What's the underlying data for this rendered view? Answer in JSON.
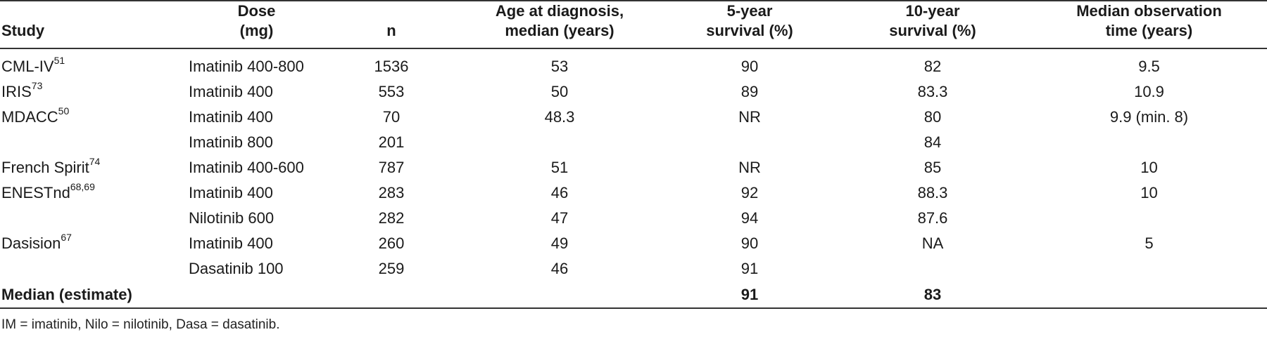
{
  "table": {
    "headers": {
      "study": "Study",
      "dose_line1": "Dose",
      "dose_line2": "(mg)",
      "n": "n",
      "age_line1": "Age at diagnosis,",
      "age_line2": "median (years)",
      "surv5_line1": "5-year",
      "surv5_line2": "survival (%)",
      "surv10_line1": "10-year",
      "surv10_line2": "survival (%)",
      "obs_line1": "Median observation",
      "obs_line2": "time (years)"
    },
    "rows": [
      {
        "study": "CML-IV",
        "ref": "51",
        "dose": "Imatinib 400-800",
        "n": "1536",
        "age": "53",
        "surv5": "90",
        "surv10": "82",
        "obs": "9.5"
      },
      {
        "study": "IRIS",
        "ref": "73",
        "dose": "Imatinib 400",
        "n": "553",
        "age": "50",
        "surv5": "89",
        "surv10": "83.3",
        "obs": "10.9"
      },
      {
        "study": "MDACC",
        "ref": "50",
        "dose": "Imatinib 400",
        "n": "70",
        "age": "48.3",
        "surv5": "NR",
        "surv10": "80",
        "obs": "9.9 (min. 8)"
      },
      {
        "study": "",
        "ref": "",
        "dose": "Imatinib 800",
        "n": "201",
        "age": "",
        "surv5": "",
        "surv10": "84",
        "obs": ""
      },
      {
        "study": "French Spirit",
        "ref": "74",
        "dose": "Imatinib 400-600",
        "n": "787",
        "age": "51",
        "surv5": "NR",
        "surv10": "85",
        "obs": "10"
      },
      {
        "study": "ENESTnd",
        "ref": "68,69",
        "dose": "Imatinib 400",
        "n": "283",
        "age": "46",
        "surv5": "92",
        "surv10": "88.3",
        "obs": "10"
      },
      {
        "study": "",
        "ref": "",
        "dose": "Nilotinib 600",
        "n": "282",
        "age": "47",
        "surv5": "94",
        "surv10": "87.6",
        "obs": ""
      },
      {
        "study": "Dasision",
        "ref": "67",
        "dose": "Imatinib 400",
        "n": "260",
        "age": "49",
        "surv5": "90",
        "surv10": "NA",
        "obs": "5"
      },
      {
        "study": "",
        "ref": "",
        "dose": "Dasatinib 100",
        "n": "259",
        "age": "46",
        "surv5": "91",
        "surv10": "",
        "obs": ""
      }
    ],
    "median_row": {
      "label": "Median (estimate)",
      "surv5": "91",
      "surv10": "83"
    }
  },
  "footnote": "IM = imatinib, Nilo = nilotinib, Dasa = dasatinib."
}
